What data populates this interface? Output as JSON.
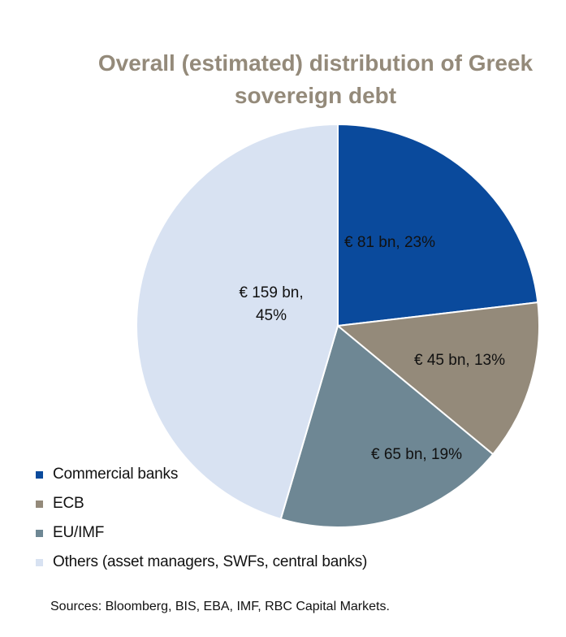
{
  "chart_data": {
    "type": "pie",
    "title_lines": [
      "Overall (estimated) distribution of Greek",
      "sovereign debt"
    ],
    "slices": [
      {
        "name": "Commercial banks",
        "value": 81,
        "percent": 23,
        "color": "#0a4a9c",
        "label_lines": [
          "€ 81 bn, 23%"
        ]
      },
      {
        "name": "ECB",
        "value": 45,
        "percent": 13,
        "color": "#948a7a",
        "label_lines": [
          "€ 45 bn, 13%"
        ]
      },
      {
        "name": "EU/IMF",
        "value": 65,
        "percent": 19,
        "color": "#6e8794",
        "label_lines": [
          "€ 65 bn, 19%"
        ]
      },
      {
        "name": "Others (asset managers, SWFs, central banks)",
        "value": 159,
        "percent": 45,
        "color": "#d8e2f2",
        "label_lines": [
          "€ 159 bn,",
          "45%"
        ]
      }
    ],
    "legend_position": "bottom-left",
    "source": "Sources: Bloomberg, BIS, EBA, IMF, RBC Capital Markets."
  }
}
